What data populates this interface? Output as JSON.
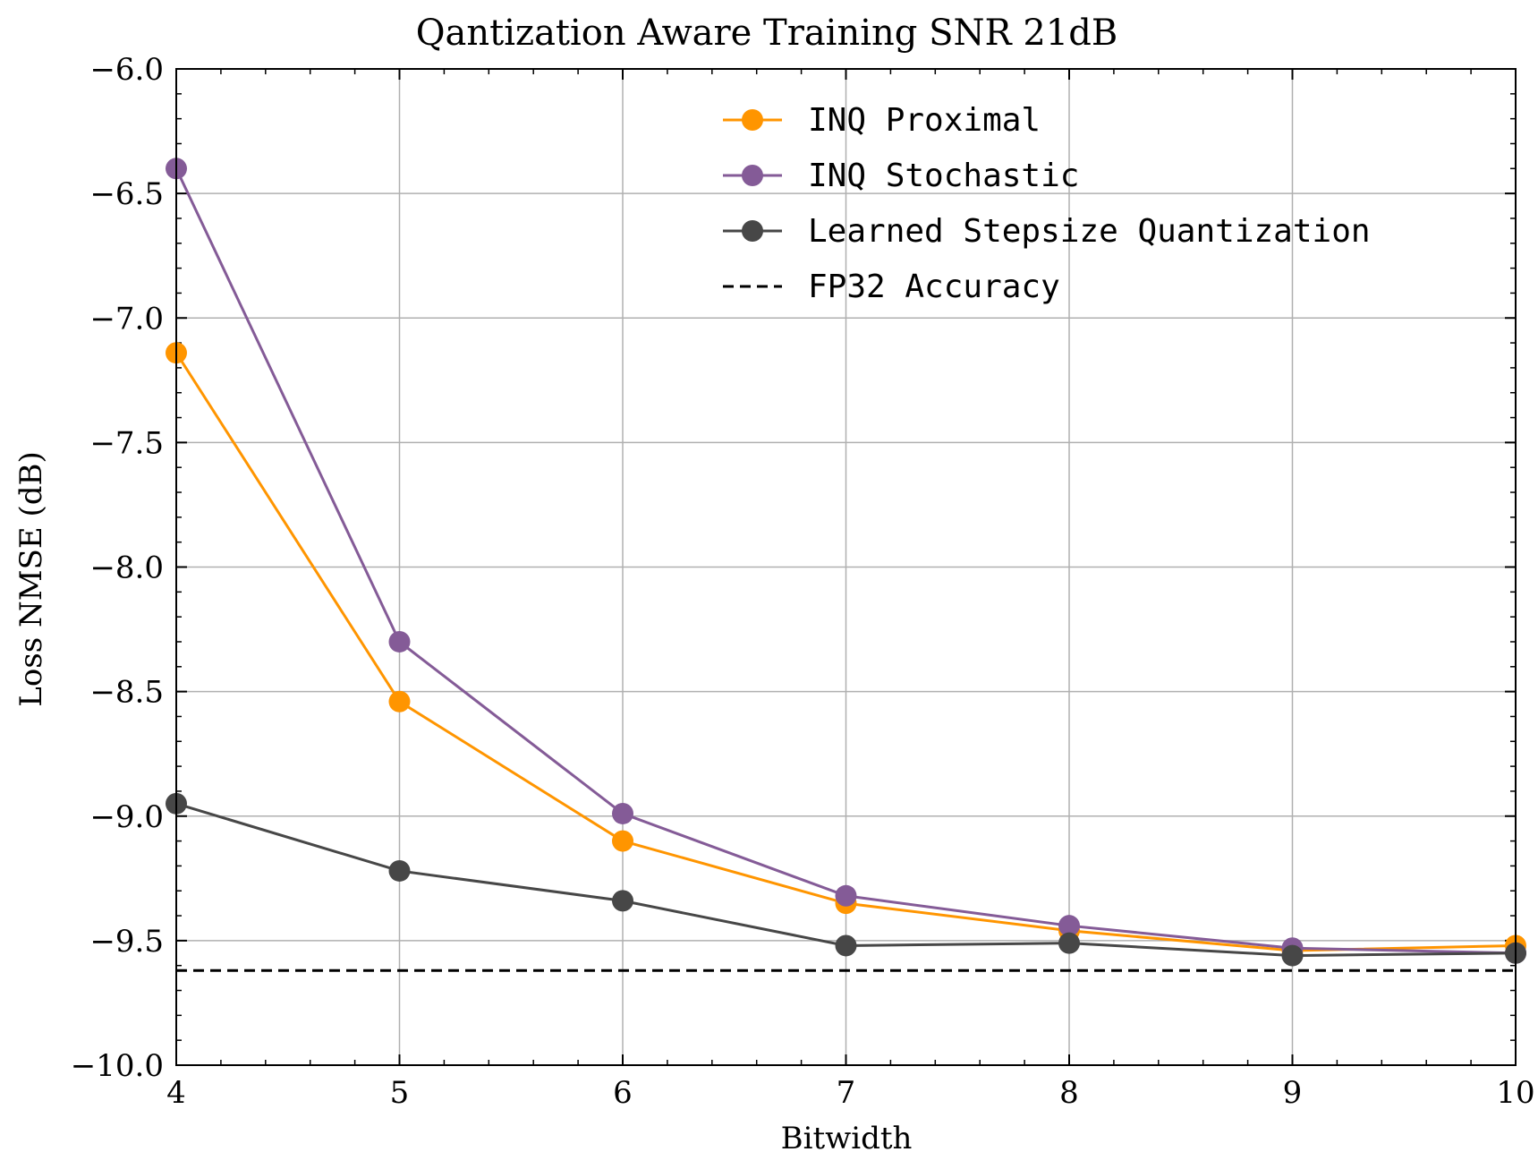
{
  "chart_data": {
    "type": "line",
    "title": "Qantization Aware Training SNR 21dB",
    "xlabel": "Bitwidth",
    "ylabel": "Loss NMSE (dB)",
    "xlim": [
      4,
      10
    ],
    "ylim": [
      -10.0,
      -6.0
    ],
    "xticks": [
      "4",
      "5",
      "6",
      "7",
      "8",
      "9",
      "10"
    ],
    "yticks": [
      "−6.0",
      "−6.5",
      "−7.0",
      "−7.5",
      "−8.0",
      "−8.5",
      "−9.0",
      "−9.5",
      "−10.0"
    ],
    "grid": true,
    "legend_position": "top-right",
    "x": [
      4,
      5,
      6,
      7,
      8,
      9,
      10
    ],
    "series": [
      {
        "name": "INQ Proximal",
        "color": "#ff9500",
        "values": [
          -7.14,
          -8.54,
          -9.1,
          -9.35,
          -9.46,
          -9.54,
          -9.52
        ]
      },
      {
        "name": "INQ Stochastic",
        "color": "#845b97",
        "values": [
          -6.4,
          -8.3,
          -8.99,
          -9.32,
          -9.44,
          -9.53,
          -9.55
        ]
      },
      {
        "name": "Learned Stepsize Quantization",
        "color": "#474747",
        "values": [
          -8.95,
          -9.22,
          -9.34,
          -9.52,
          -9.51,
          -9.56,
          -9.55
        ]
      }
    ],
    "reference_line": {
      "name": "FP32 Accuracy",
      "value": -9.62,
      "color": "#000000",
      "style": "dashed"
    }
  }
}
